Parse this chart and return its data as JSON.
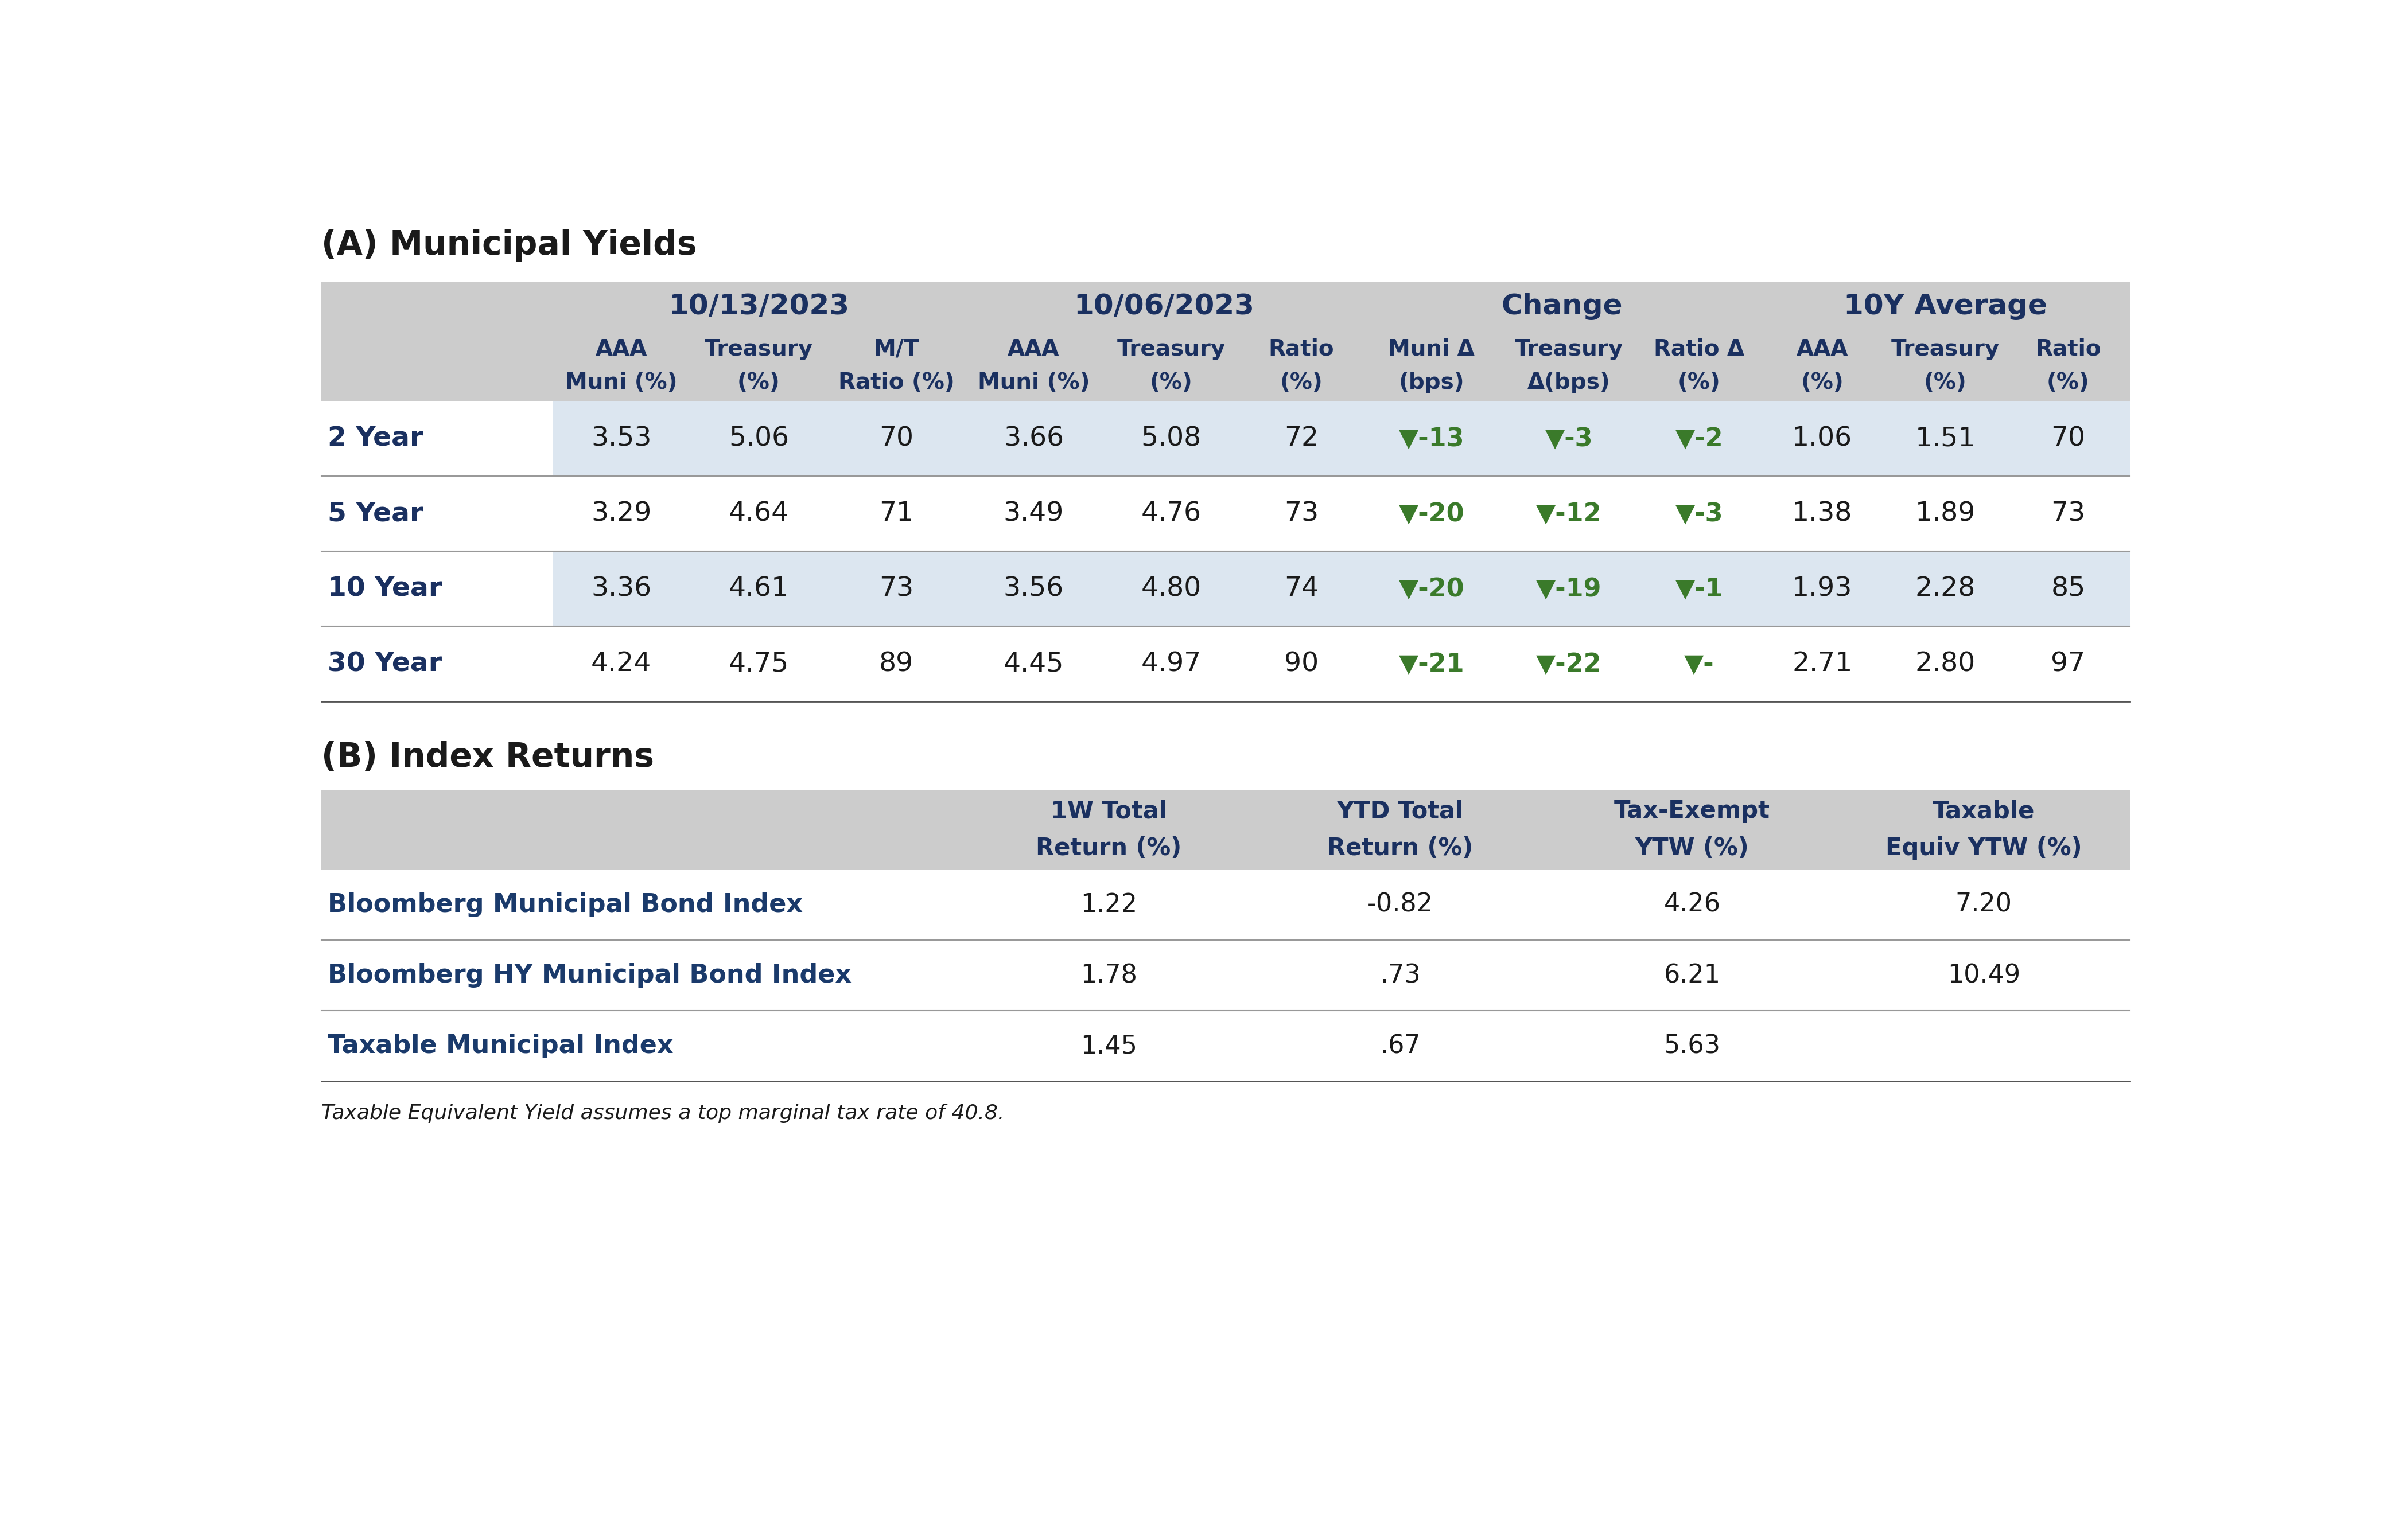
{
  "title_a": "(A) Municipal Yields",
  "title_b": "(B) Index Returns",
  "footnote": "Taxable Equivalent Yield assumes a top marginal tax rate of 40.8.",
  "col_group_headers": [
    "10/13/2023",
    "10/06/2023",
    "Change",
    "10Y Average"
  ],
  "sub_headers_row1": [
    "AAA",
    "Treasury",
    "M/T",
    "AAA",
    "Treasury",
    "Ratio",
    "Muni Δ",
    "Treasury",
    "Ratio Δ",
    "AAA",
    "Treasury",
    "Ratio"
  ],
  "sub_headers_row2": [
    "Muni (%)",
    "(%)",
    "Ratio (%)",
    "Muni (%)",
    "(%)",
    "(%)",
    "(bps)",
    "Δ(bps)",
    "(%)",
    "(%)",
    "(%)",
    "(%)"
  ],
  "row_labels": [
    "2 Year",
    "5 Year",
    "10 Year",
    "30 Year"
  ],
  "data": [
    [
      "3.53",
      "5.06",
      "70",
      "3.66",
      "5.08",
      "72",
      "▼-13",
      "▼-3",
      "▼-2",
      "1.06",
      "1.51",
      "70"
    ],
    [
      "3.29",
      "4.64",
      "71",
      "3.49",
      "4.76",
      "73",
      "▼-20",
      "▼-12",
      "▼-3",
      "1.38",
      "1.89",
      "73"
    ],
    [
      "3.36",
      "4.61",
      "73",
      "3.56",
      "4.80",
      "74",
      "▼-20",
      "▼-19",
      "▼-1",
      "1.93",
      "2.28",
      "85"
    ],
    [
      "4.24",
      "4.75",
      "89",
      "4.45",
      "4.97",
      "90",
      "▼-21",
      "▼-22",
      "▼-",
      "2.71",
      "2.80",
      "97"
    ]
  ],
  "index_col_headers_row1": [
    "1W Total",
    "YTD Total",
    "Tax-Exempt",
    "Taxable"
  ],
  "index_col_headers_row2": [
    "Return (%)",
    "Return (%)",
    "YTW (%)",
    "Equiv YTW (%)"
  ],
  "index_row_labels": [
    "Bloomberg Municipal Bond Index",
    "Bloomberg HY Municipal Bond Index",
    "Taxable Municipal Index"
  ],
  "index_data": [
    [
      "1.22",
      "-0.82",
      "4.26",
      "7.20"
    ],
    [
      "1.78",
      ".73",
      "6.21",
      "10.49"
    ],
    [
      "1.45",
      ".67",
      "5.63",
      ""
    ]
  ],
  "bg_color": "#ffffff",
  "header_bg": "#cccccc",
  "row_bg_even": "#dce6f0",
  "row_bg_odd": "#ffffff",
  "dark_navy": "#1a3060",
  "green_arrow": "#3a7a2a",
  "text_black": "#1a1a1a",
  "text_blue": "#1a3a6b",
  "line_color": "#999999",
  "divider_color": "#555555"
}
